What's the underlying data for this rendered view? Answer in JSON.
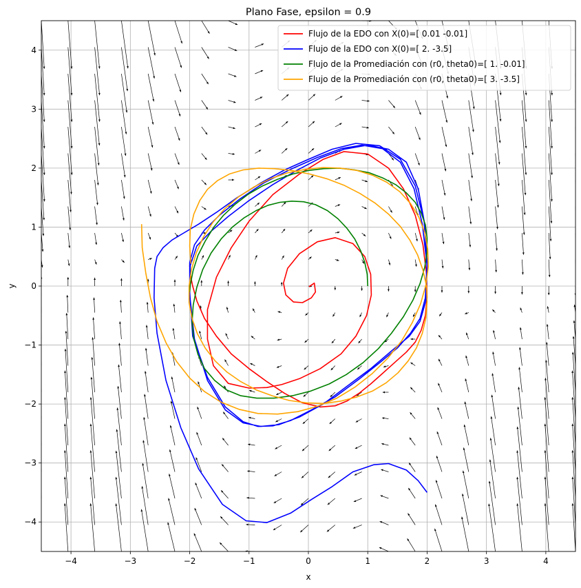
{
  "chart_data": {
    "type": "line",
    "title": "Plano Fase, epsilon = 0.9",
    "xlabel": "x",
    "ylabel": "y",
    "xlim": [
      -4.5,
      4.5
    ],
    "ylim": [
      -4.5,
      4.5
    ],
    "xticks": [
      -4,
      -3,
      -2,
      -1,
      0,
      1,
      2,
      3,
      4
    ],
    "yticks": [
      -4,
      -3,
      -2,
      -1,
      0,
      1,
      2,
      3,
      4
    ],
    "xtick_labels": [
      "−4",
      "−3",
      "−2",
      "−1",
      "0",
      "1",
      "2",
      "3",
      "4"
    ],
    "ytick_labels": [
      "−4",
      "−3",
      "−2",
      "−1",
      "0",
      "1",
      "2",
      "3",
      "4"
    ],
    "grid": true,
    "legend_position": "top-right",
    "epsilon": 0.9,
    "vector_field": {
      "grid_step": 0.45,
      "arrow_color": "#000000"
    },
    "series": [
      {
        "name": "Flujo de la EDO con X(0)=[ 0.01 -0.01]",
        "color": "#ff0000",
        "x": [
          0.01,
          0.1,
          0.12,
          0.05,
          -0.1,
          -0.25,
          -0.38,
          -0.42,
          -0.35,
          -0.15,
          0.15,
          0.45,
          0.75,
          0.95,
          1.05,
          1.06,
          0.98,
          0.8,
          0.55,
          0.2,
          -0.15,
          -0.45,
          -0.7,
          -1.0,
          -1.35,
          -1.6,
          -1.7,
          -1.7,
          -1.55,
          -1.3,
          -1.0,
          -0.6,
          -0.15,
          0.25,
          0.6,
          1.0,
          1.35,
          1.6,
          1.8,
          1.93,
          1.99,
          2.0,
          1.97,
          1.9,
          1.8,
          1.65,
          1.45,
          1.25,
          1.05,
          0.85,
          0.65,
          0.45,
          0.2,
          -0.1,
          -0.4,
          -0.7,
          -1.0,
          -1.3,
          -1.55,
          -1.75,
          -1.88,
          -1.95,
          -1.99,
          -2.0,
          -1.97
        ],
        "y": [
          -0.01,
          0.05,
          -0.1,
          -0.2,
          -0.28,
          -0.27,
          -0.15,
          0.05,
          0.3,
          0.55,
          0.75,
          0.82,
          0.72,
          0.5,
          0.2,
          -0.15,
          -0.5,
          -0.85,
          -1.15,
          -1.4,
          -1.57,
          -1.67,
          -1.72,
          -1.73,
          -1.65,
          -1.35,
          -0.9,
          -0.4,
          0.15,
          0.65,
          1.1,
          1.55,
          1.9,
          2.15,
          2.28,
          2.24,
          2.0,
          1.65,
          1.2,
          0.7,
          0.2,
          -0.2,
          -0.5,
          -0.75,
          -0.95,
          -1.12,
          -1.3,
          -1.48,
          -1.66,
          -1.82,
          -1.95,
          -2.03,
          -2.05,
          -1.98,
          -1.82,
          -1.62,
          -1.4,
          -1.15,
          -0.85,
          -0.55,
          -0.25,
          0.0,
          0.2,
          0.35,
          0.45
        ]
      },
      {
        "name": "Flujo de la EDO con X(0)=[ 2.  -3.5]",
        "color": "#0000ff",
        "x": [
          2.0,
          1.85,
          1.65,
          1.35,
          1.1,
          0.75,
          0.4,
          0.05,
          -0.3,
          -0.7,
          -1.05,
          -1.45,
          -1.85,
          -2.15,
          -2.4,
          -2.55,
          -2.6,
          -2.59,
          -2.55,
          -2.45,
          -2.3,
          -2.1,
          -1.85,
          -1.55,
          -1.2,
          -0.8,
          -0.4,
          0.0,
          0.4,
          0.8,
          1.2,
          1.55,
          1.8,
          1.95,
          2.0,
          1.97,
          1.88,
          1.72,
          1.5,
          1.2,
          0.85,
          0.45,
          0.05,
          -0.3,
          -0.6,
          -0.85,
          -1.1,
          -1.4,
          -1.7,
          -1.95,
          -2.0,
          -2.0,
          -1.92,
          -1.75,
          -1.5,
          -1.15,
          -0.75,
          -0.3,
          0.15,
          0.55,
          0.9,
          1.25,
          1.55,
          1.78,
          1.92,
          2.0,
          1.98,
          1.88,
          1.7,
          1.4,
          1.05,
          0.65,
          0.25,
          -0.15,
          -0.5,
          -0.8,
          -1.1,
          -1.4,
          -1.7,
          -1.92,
          -2.0,
          -1.99,
          -1.88,
          -1.65,
          -1.35,
          -1.0,
          -0.6,
          -0.2,
          0.2,
          0.6,
          1.0,
          1.35,
          1.65,
          1.85,
          1.96,
          2.0
        ],
        "y": [
          -3.5,
          -3.3,
          -3.12,
          -3.01,
          -3.03,
          -3.15,
          -3.4,
          -3.62,
          -3.85,
          -4.01,
          -3.98,
          -3.7,
          -3.1,
          -2.4,
          -1.6,
          -0.8,
          -0.2,
          0.3,
          0.5,
          0.65,
          0.78,
          0.9,
          1.05,
          1.25,
          1.5,
          1.75,
          1.97,
          2.15,
          2.32,
          2.42,
          2.38,
          2.15,
          1.7,
          1.1,
          0.4,
          -0.2,
          -0.55,
          -0.8,
          -1.05,
          -1.3,
          -1.58,
          -1.88,
          -2.1,
          -2.28,
          -2.37,
          -2.38,
          -2.3,
          -2.05,
          -1.55,
          -0.85,
          -0.1,
          0.4,
          0.7,
          0.95,
          1.2,
          1.48,
          1.75,
          1.98,
          2.18,
          2.33,
          2.39,
          2.33,
          2.1,
          1.65,
          1.05,
          0.35,
          -0.25,
          -0.6,
          -0.85,
          -1.1,
          -1.4,
          -1.7,
          -2.0,
          -2.22,
          -2.35,
          -2.38,
          -2.32,
          -2.1,
          -1.6,
          -0.9,
          -0.15,
          0.35,
          0.68,
          0.92,
          1.18,
          1.45,
          1.72,
          1.96,
          2.17,
          2.32,
          2.39,
          2.32,
          2.1,
          1.65,
          1.05,
          0.3
        ]
      },
      {
        "name": "Flujo de la Promediación con (r0, theta0)=[ 1.   -0.01]",
        "color": "#008000",
        "x": [
          1.0,
          0.99,
          0.95,
          0.88,
          0.78,
          0.65,
          0.5,
          0.32,
          0.12,
          -0.08,
          -0.28,
          -0.48,
          -0.68,
          -0.88,
          -1.08,
          -1.28,
          -1.47,
          -1.64,
          -1.78,
          -1.88,
          -1.94,
          -1.96,
          -1.93,
          -1.86,
          -1.75,
          -1.58,
          -1.38,
          -1.14,
          -0.87,
          -0.58,
          -0.27,
          0.04,
          0.35,
          0.64,
          0.92,
          1.18,
          1.4,
          1.6,
          1.76,
          1.88,
          1.96,
          2.0,
          2.0,
          1.97,
          1.9,
          1.8,
          1.65,
          1.47,
          1.26,
          1.03,
          0.78,
          0.52,
          0.26,
          0.0,
          -0.26,
          -0.52,
          -0.77,
          -1.01,
          -1.23,
          -1.43,
          -1.6,
          -1.74,
          -1.86,
          -1.94,
          -1.99,
          -2.0
        ],
        "y": [
          0.0,
          0.2,
          0.4,
          0.6,
          0.8,
          0.98,
          1.14,
          1.28,
          1.38,
          1.43,
          1.44,
          1.42,
          1.37,
          1.28,
          1.16,
          1.0,
          0.8,
          0.56,
          0.28,
          -0.02,
          -0.32,
          -0.62,
          -0.9,
          -1.16,
          -1.4,
          -1.6,
          -1.76,
          -1.86,
          -1.9,
          -1.9,
          -1.86,
          -1.78,
          -1.66,
          -1.5,
          -1.3,
          -1.06,
          -0.8,
          -0.52,
          -0.24,
          0.04,
          0.32,
          0.58,
          0.82,
          1.04,
          1.24,
          1.42,
          1.58,
          1.72,
          1.83,
          1.92,
          1.97,
          2.0,
          1.99,
          1.96,
          1.9,
          1.81,
          1.7,
          1.56,
          1.39,
          1.2,
          0.99,
          0.76,
          0.52,
          0.27,
          0.02,
          -0.1
        ]
      },
      {
        "name": "Flujo de la Promediación con (r0, theta0)=[ 3.  -3.5]",
        "color": "#ffa500",
        "x": [
          -2.81,
          -2.8,
          -2.74,
          -2.66,
          -2.55,
          -2.4,
          -2.22,
          -2.0,
          -1.75,
          -1.47,
          -1.17,
          -0.85,
          -0.52,
          -0.18,
          0.15,
          0.48,
          0.79,
          1.08,
          1.34,
          1.57,
          1.75,
          1.89,
          1.98,
          2.02,
          2.01,
          1.96,
          1.86,
          1.72,
          1.54,
          1.32,
          1.08,
          0.82,
          0.54,
          0.25,
          -0.05,
          -0.35,
          -0.64,
          -0.92,
          -1.18,
          -1.41,
          -1.61,
          -1.77,
          -1.89,
          -1.97,
          -2.01,
          -2.01,
          -1.96,
          -1.87,
          -1.74,
          -1.57,
          -1.37,
          -1.14,
          -0.88,
          -0.61,
          -0.32,
          -0.03,
          0.26,
          0.55,
          0.82,
          1.08,
          1.31,
          1.51,
          1.68,
          1.82,
          1.92,
          1.98,
          2.0,
          1.99,
          1.93,
          1.84,
          1.71,
          1.55,
          1.35,
          1.12,
          0.87,
          0.6,
          0.31,
          0.02,
          -0.28,
          -0.57,
          -0.84,
          -1.1,
          -1.33,
          -1.53,
          -1.7,
          -1.83,
          -1.93,
          -1.99,
          -2.0,
          -1.98
        ],
        "y": [
          1.05,
          0.65,
          0.22,
          -0.2,
          -0.6,
          -0.96,
          -1.28,
          -1.56,
          -1.79,
          -1.97,
          -2.09,
          -2.16,
          -2.17,
          -2.13,
          -2.04,
          -1.9,
          -1.71,
          -1.48,
          -1.22,
          -0.93,
          -0.62,
          -0.3,
          0.02,
          0.33,
          0.63,
          0.91,
          1.17,
          1.4,
          1.6,
          1.76,
          1.88,
          1.96,
          2.0,
          2.01,
          1.98,
          1.92,
          1.82,
          1.68,
          1.51,
          1.31,
          1.08,
          0.83,
          0.56,
          0.28,
          0.0,
          -0.28,
          -0.55,
          -0.81,
          -1.05,
          -1.27,
          -1.46,
          -1.62,
          -1.76,
          -1.86,
          -1.94,
          -1.98,
          -1.99,
          -1.95,
          -1.88,
          -1.78,
          -1.64,
          -1.47,
          -1.27,
          -1.05,
          -0.8,
          -0.54,
          -0.27,
          0.0,
          0.27,
          0.53,
          0.78,
          1.01,
          1.22,
          1.41,
          1.57,
          1.71,
          1.82,
          1.9,
          1.96,
          1.99,
          2.0,
          1.97,
          1.9,
          1.79,
          1.64,
          1.45,
          1.22,
          0.96,
          0.68,
          0.38
        ]
      }
    ]
  }
}
